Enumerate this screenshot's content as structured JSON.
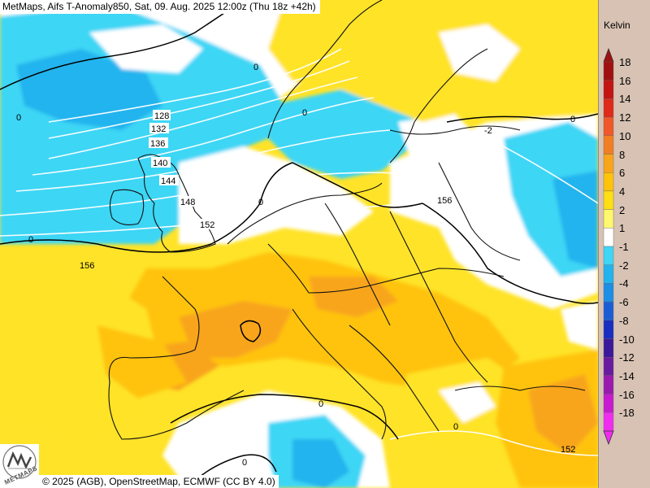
{
  "map": {
    "title": "MetMaps, Aifs T-Anomaly850, Sat, 09. Aug. 2025 12:00z (Thu 18z +42h)",
    "credit": "© 2025 (AGB), OpenStreetMap, ECMWF (CC BY 4.0)",
    "logo_text": "METMAPS",
    "geopotential_labels": [
      "128",
      "132",
      "136",
      "140",
      "144",
      "148",
      "152",
      "156",
      "156",
      "152"
    ],
    "zero_labels": [
      "0",
      "0",
      "0",
      "0",
      "0",
      "0",
      "0",
      "0",
      "0"
    ],
    "cold_core_label": "-2"
  },
  "colorbar": {
    "unit": "Kelvin",
    "levels": [
      {
        "label": "18",
        "color": "#a01010"
      },
      {
        "label": "16",
        "color": "#c41414"
      },
      {
        "label": "14",
        "color": "#e02a1a"
      },
      {
        "label": "12",
        "color": "#f0582a"
      },
      {
        "label": "10",
        "color": "#f27e22"
      },
      {
        "label": "8",
        "color": "#f8a51a"
      },
      {
        "label": "6",
        "color": "#ffc30a"
      },
      {
        "label": "4",
        "color": "#ffdf14"
      },
      {
        "label": "2",
        "color": "#fff76e"
      },
      {
        "label": "1",
        "color": "#ffffff"
      },
      {
        "label": "-1",
        "color": "#3ed6f5"
      },
      {
        "label": "-2",
        "color": "#22b4ee"
      },
      {
        "label": "-4",
        "color": "#1c8ee6"
      },
      {
        "label": "-6",
        "color": "#1a5ed6"
      },
      {
        "label": "-8",
        "color": "#1a2ec0"
      },
      {
        "label": "-10",
        "color": "#3a1a9a"
      },
      {
        "label": "-12",
        "color": "#6a1aa0"
      },
      {
        "label": "-14",
        "color": "#9a1ab0"
      },
      {
        "label": "-16",
        "color": "#c81ad0"
      },
      {
        "label": "-18",
        "color": "#f02cf0"
      }
    ]
  }
}
